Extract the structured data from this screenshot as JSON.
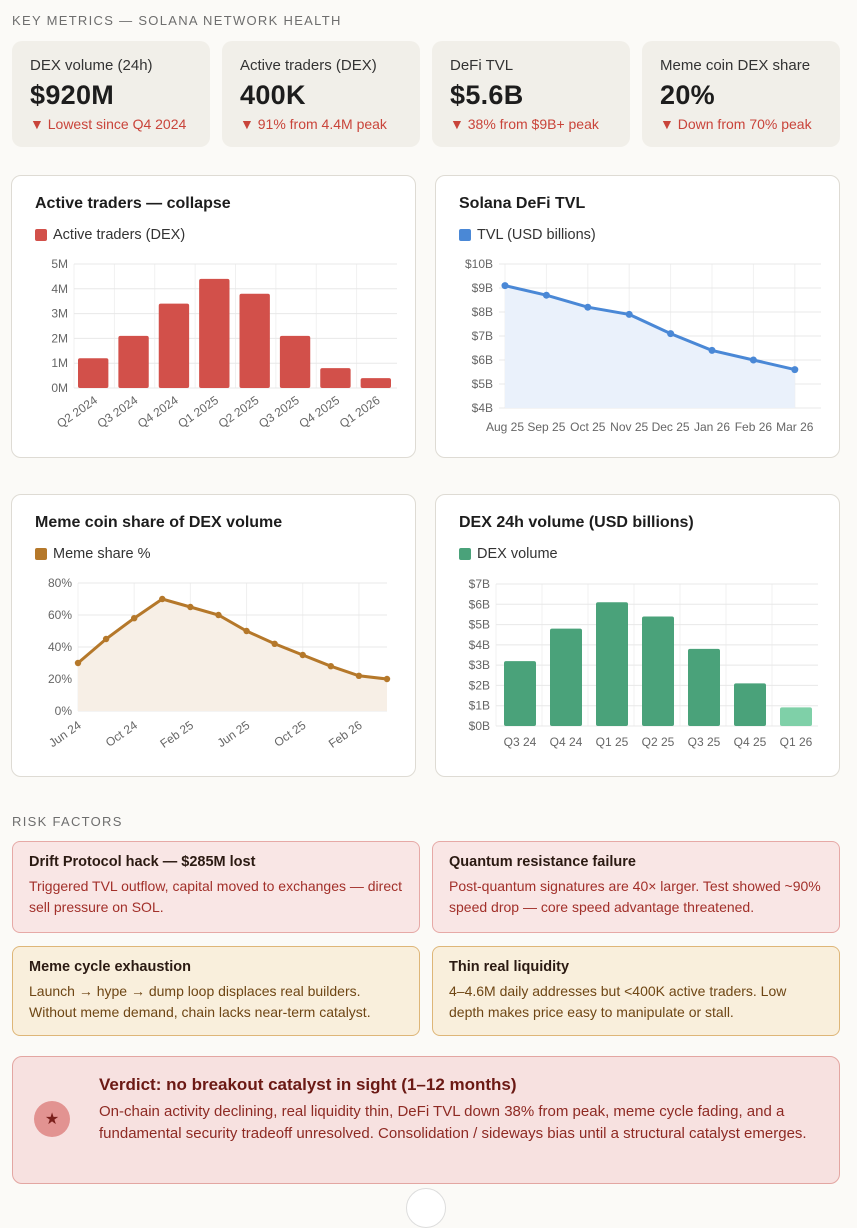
{
  "header": {
    "title": "KEY METRICS — SOLANA NETWORK HEALTH"
  },
  "metrics": [
    {
      "label": "DEX volume (24h)",
      "value": "$920M",
      "delta": "Lowest since Q4 2024"
    },
    {
      "label": "Active traders (DEX)",
      "value": "400K",
      "delta": "91% from 4.4M peak"
    },
    {
      "label": "DeFi TVL",
      "value": "$5.6B",
      "delta": "38% from $9B+ peak"
    },
    {
      "label": "Meme coin DEX share",
      "value": "20%",
      "delta": "Down from 70% peak"
    }
  ],
  "colors": {
    "red": "#d2504a",
    "blue": "#4a88d6",
    "brown": "#b5782a",
    "green": "#4aa27a",
    "green_light": "#7fd0a8"
  },
  "chart_data": [
    {
      "type": "bar",
      "title": "Active traders — collapse",
      "legend": "Active traders (DEX)",
      "categories": [
        "Q2 2024",
        "Q3 2024",
        "Q4 2024",
        "Q1 2025",
        "Q2 2025",
        "Q3 2025",
        "Q4 2025",
        "Q1 2026"
      ],
      "values": [
        1.2,
        2.1,
        3.4,
        4.4,
        3.8,
        2.1,
        0.8,
        0.4
      ],
      "ylim": [
        0,
        5
      ],
      "yticks": [
        "0M",
        "1M",
        "2M",
        "3M",
        "4M",
        "5M"
      ]
    },
    {
      "type": "area",
      "title": "Solana DeFi TVL",
      "legend": "TVL (USD billions)",
      "categories": [
        "Aug 25",
        "Sep 25",
        "Oct 25",
        "Nov 25",
        "Dec 25",
        "Jan 26",
        "Feb 26",
        "Mar 26"
      ],
      "values": [
        9.1,
        8.7,
        8.2,
        7.9,
        7.1,
        6.4,
        6.0,
        5.6
      ],
      "ylim": [
        4,
        10
      ],
      "yticks": [
        "$4B",
        "$5B",
        "$6B",
        "$7B",
        "$8B",
        "$9B",
        "$10B"
      ]
    },
    {
      "type": "area",
      "title": "Meme coin share of DEX volume",
      "legend": "Meme share %",
      "values": [
        30,
        45,
        58,
        70,
        65,
        60,
        50,
        42,
        35,
        28,
        22,
        20
      ],
      "xticks": [
        "Jun 24",
        "Oct 24",
        "Feb 25",
        "Jun 25",
        "Oct 25",
        "Feb 26"
      ],
      "ylim": [
        0,
        80
      ],
      "yticks": [
        "0%",
        "20%",
        "40%",
        "60%",
        "80%"
      ]
    },
    {
      "type": "bar",
      "title": "DEX 24h volume (USD billions)",
      "legend": "DEX volume",
      "categories": [
        "Q3 24",
        "Q4 24",
        "Q1 25",
        "Q2 25",
        "Q3 25",
        "Q4 25",
        "Q1 26"
      ],
      "values": [
        3.2,
        4.8,
        6.1,
        5.4,
        3.8,
        2.1,
        0.92
      ],
      "ylim": [
        0,
        7
      ],
      "yticks": [
        "$0B",
        "$1B",
        "$2B",
        "$3B",
        "$4B",
        "$5B",
        "$6B",
        "$7B"
      ]
    }
  ],
  "risk": {
    "title": "RISK FACTORS",
    "items": [
      {
        "title": "Drift Protocol hack — $285M lost",
        "body": "Triggered TVL outflow, capital moved to exchanges — direct sell pressure on SOL."
      },
      {
        "title": "Quantum resistance failure",
        "body": "Post-quantum signatures are 40× larger. Test showed ~90% speed drop — core speed advantage threatened."
      },
      {
        "title": "Meme cycle exhaustion",
        "body": "Launch → hype → dump loop displaces real builders. Without meme demand, chain lacks near-term catalyst."
      },
      {
        "title": "Thin real liquidity",
        "body": "4–4.6M daily addresses but <400K active traders. Low depth makes price easy to manipulate or stall."
      }
    ]
  },
  "verdict": {
    "icon": "star-icon",
    "title": "Verdict: no breakout catalyst in sight (1–12 months)",
    "body": "On-chain activity declining, real liquidity thin, DeFi TVL down 38% from peak, meme cycle fading, and a fundamental security tradeoff unresolved. Consolidation / sideways bias until a structural catalyst emerges."
  }
}
